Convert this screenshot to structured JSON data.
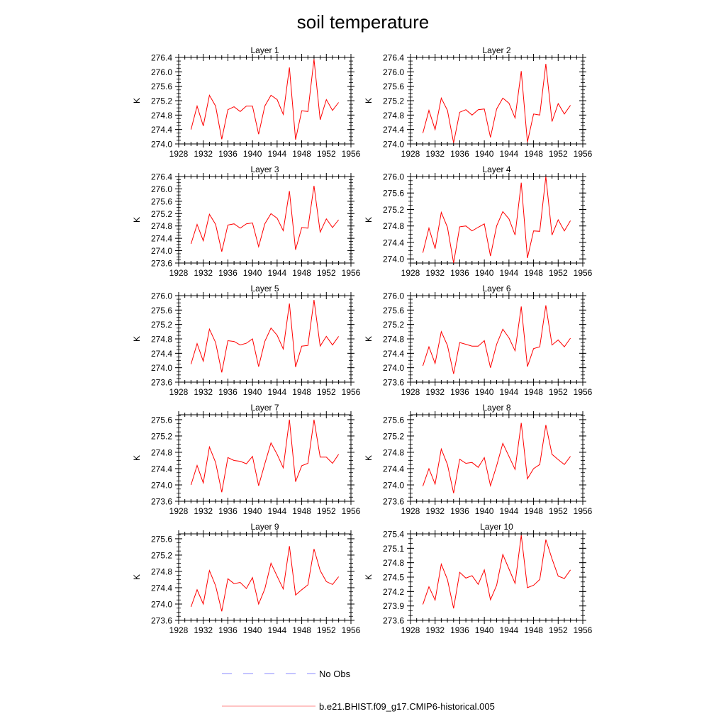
{
  "chart_data": {
    "type": "line",
    "title": "soil temperature",
    "x": [
      1930,
      1931,
      1932,
      1933,
      1934,
      1935,
      1936,
      1937,
      1938,
      1939,
      1940,
      1941,
      1942,
      1943,
      1944,
      1945,
      1946,
      1947,
      1948,
      1949,
      1950,
      1951,
      1952,
      1953,
      1954
    ],
    "xlim": [
      1928,
      1956
    ],
    "xticks": [
      "1928",
      "1932",
      "1936",
      "1940",
      "1944",
      "1948",
      "1952",
      "1956"
    ],
    "ylabel": "K",
    "series_color": "#ff0000",
    "panels": [
      {
        "title": "Layer 1",
        "ylim": [
          274.0,
          276.4
        ],
        "yticks": [
          "274.0",
          "274.4",
          "274.8",
          "275.2",
          "275.6",
          "276.0",
          "276.4"
        ],
        "values": [
          274.4,
          275.05,
          274.5,
          275.35,
          275.05,
          274.13,
          274.95,
          275.03,
          274.9,
          275.05,
          275.05,
          274.27,
          275.05,
          275.35,
          275.23,
          274.82,
          276.12,
          274.12,
          274.92,
          274.9,
          276.35,
          274.67,
          275.23,
          274.93,
          275.15
        ]
      },
      {
        "title": "Layer 2",
        "ylim": [
          274.0,
          276.4
        ],
        "yticks": [
          "274.0",
          "274.4",
          "274.8",
          "275.2",
          "275.6",
          "276.0",
          "276.4"
        ],
        "values": [
          274.3,
          274.93,
          274.4,
          275.27,
          274.93,
          274.03,
          274.88,
          274.95,
          274.8,
          274.95,
          274.97,
          274.18,
          274.97,
          275.27,
          275.13,
          274.72,
          276.02,
          274.05,
          274.83,
          274.8,
          276.22,
          274.62,
          275.12,
          274.83,
          275.07
        ]
      },
      {
        "title": "Layer 3",
        "ylim": [
          273.6,
          276.4
        ],
        "yticks": [
          "273.6",
          "274.0",
          "274.4",
          "274.8",
          "275.2",
          "275.6",
          "276.0",
          "276.4"
        ],
        "values": [
          274.22,
          274.85,
          274.32,
          275.18,
          274.85,
          273.97,
          274.83,
          274.87,
          274.73,
          274.87,
          274.9,
          274.13,
          274.87,
          275.2,
          275.05,
          274.65,
          275.93,
          274.03,
          274.75,
          274.73,
          276.1,
          274.6,
          275.03,
          274.75,
          275.0
        ]
      },
      {
        "title": "Layer 4",
        "ylim": [
          273.9,
          276.0
        ],
        "yticks": [
          "274.0",
          "274.4",
          "274.8",
          "275.2",
          "275.6",
          "276.0"
        ],
        "values": [
          274.15,
          274.75,
          274.25,
          275.13,
          274.77,
          273.9,
          274.78,
          274.8,
          274.68,
          274.77,
          274.85,
          274.07,
          274.8,
          275.15,
          274.97,
          274.58,
          275.85,
          274.02,
          274.68,
          274.67,
          276.0,
          274.58,
          274.95,
          274.68,
          274.93
        ]
      },
      {
        "title": "Layer 5",
        "ylim": [
          273.6,
          276.0
        ],
        "yticks": [
          "273.6",
          "274.0",
          "274.4",
          "274.8",
          "275.2",
          "275.6",
          "276.0"
        ],
        "values": [
          274.1,
          274.67,
          274.18,
          275.07,
          274.7,
          273.87,
          274.75,
          274.73,
          274.63,
          274.68,
          274.8,
          274.03,
          274.73,
          275.1,
          274.9,
          274.52,
          275.78,
          274.02,
          274.6,
          274.62,
          275.88,
          274.6,
          274.87,
          274.63,
          274.87
        ]
      },
      {
        "title": "Layer 6",
        "ylim": [
          273.6,
          276.0
        ],
        "yticks": [
          "273.6",
          "274.0",
          "274.4",
          "274.8",
          "275.2",
          "275.6",
          "276.0"
        ],
        "values": [
          274.05,
          274.58,
          274.12,
          275.0,
          274.62,
          273.83,
          274.7,
          274.65,
          274.6,
          274.6,
          274.75,
          274.0,
          274.65,
          275.07,
          274.83,
          274.47,
          275.7,
          274.03,
          274.53,
          274.58,
          275.73,
          274.63,
          274.77,
          274.58,
          274.82
        ]
      },
      {
        "title": "Layer 7",
        "ylim": [
          273.6,
          275.72
        ],
        "yticks": [
          "273.6",
          "274.0",
          "274.4",
          "274.8",
          "275.2",
          "275.6"
        ],
        "values": [
          274.0,
          274.48,
          274.05,
          274.93,
          274.55,
          273.82,
          274.67,
          274.6,
          274.58,
          274.52,
          274.7,
          273.98,
          274.52,
          275.03,
          274.75,
          274.42,
          275.6,
          274.08,
          274.47,
          274.53,
          275.6,
          274.68,
          274.68,
          274.53,
          274.75
        ]
      },
      {
        "title": "Layer 8",
        "ylim": [
          273.6,
          275.72
        ],
        "yticks": [
          "273.6",
          "274.0",
          "274.4",
          "274.8",
          "275.2",
          "275.6"
        ],
        "values": [
          273.97,
          274.4,
          274.02,
          274.88,
          274.5,
          273.8,
          274.63,
          274.53,
          274.55,
          274.43,
          274.67,
          273.98,
          274.47,
          275.02,
          274.7,
          274.38,
          275.52,
          274.15,
          274.4,
          274.5,
          275.47,
          274.75,
          274.62,
          274.5,
          274.7
        ]
      },
      {
        "title": "Layer 9",
        "ylim": [
          273.6,
          275.72
        ],
        "yticks": [
          "273.6",
          "274.0",
          "274.4",
          "274.8",
          "275.2",
          "275.6"
        ],
        "values": [
          273.93,
          274.35,
          274.0,
          274.82,
          274.45,
          273.82,
          274.62,
          274.5,
          274.53,
          274.38,
          274.65,
          274.0,
          274.37,
          275.0,
          274.68,
          274.37,
          275.42,
          274.22,
          274.35,
          274.47,
          275.35,
          274.82,
          274.55,
          274.48,
          274.67
        ]
      },
      {
        "title": "Layer 10",
        "ylim": [
          273.6,
          275.4
        ],
        "yticks": [
          "273.6",
          "273.9",
          "274.2",
          "274.5",
          "274.8",
          "275.1",
          "275.4"
        ],
        "values": [
          273.93,
          274.3,
          274.02,
          274.77,
          274.45,
          273.85,
          274.6,
          274.48,
          274.53,
          274.35,
          274.65,
          274.03,
          274.33,
          274.97,
          274.67,
          274.37,
          275.37,
          274.28,
          274.33,
          274.45,
          275.28,
          274.88,
          274.52,
          274.47,
          274.65
        ]
      }
    ],
    "legend": [
      {
        "label": "No Obs",
        "color": "#8888ff",
        "style": "dashed"
      },
      {
        "label": "b.e21.BHIST.f09_g17.CMIP6-historical.005",
        "color": "#ff8888",
        "style": "solid"
      }
    ],
    "legend_position": "bottom-center",
    "grid": false
  }
}
